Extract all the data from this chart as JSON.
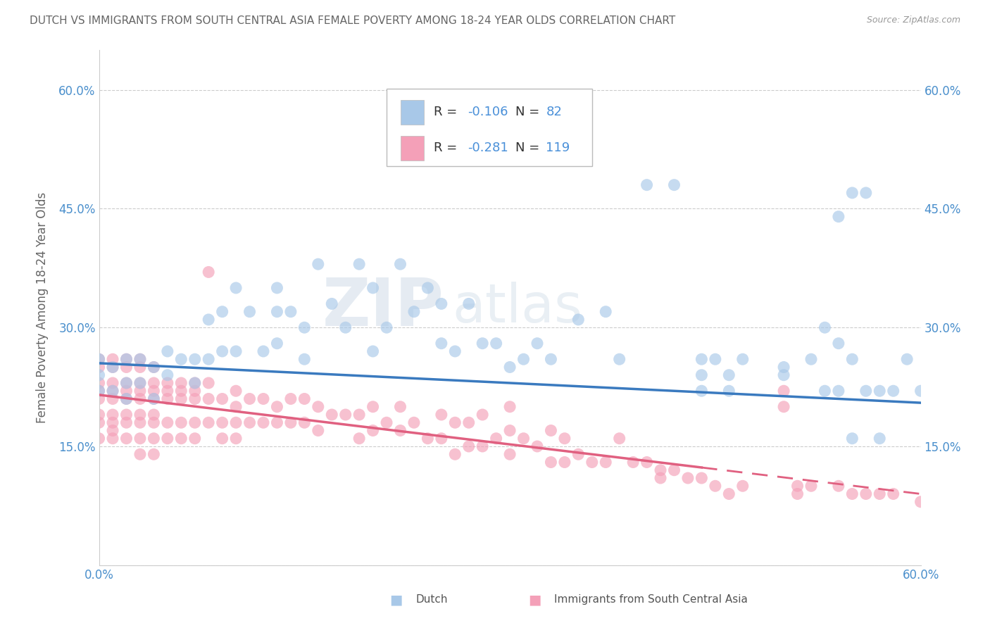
{
  "title": "DUTCH VS IMMIGRANTS FROM SOUTH CENTRAL ASIA FEMALE POVERTY AMONG 18-24 YEAR OLDS CORRELATION CHART",
  "source": "Source: ZipAtlas.com",
  "ylabel": "Female Poverty Among 18-24 Year Olds",
  "xlim": [
    0.0,
    0.6
  ],
  "ylim": [
    0.0,
    0.65
  ],
  "yticks": [
    0.0,
    0.15,
    0.3,
    0.45,
    0.6
  ],
  "ytick_labels": [
    "",
    "15.0%",
    "30.0%",
    "45.0%",
    "60.0%"
  ],
  "xticks": [
    0.0,
    0.6
  ],
  "xtick_labels": [
    "0.0%",
    "60.0%"
  ],
  "dutch_color": "#a8c8e8",
  "immigrant_color": "#f4a0b8",
  "dutch_line_color": "#3a7abf",
  "immigrant_line_color": "#e06080",
  "legend_text_color": "#4a90d9",
  "legend_labels": [
    "Dutch",
    "Immigrants from South Central Asia"
  ],
  "watermark_zip": "ZIP",
  "watermark_atlas": "atlas",
  "background_color": "#ffffff",
  "grid_color": "#cccccc",
  "title_color": "#666666",
  "axis_label_color": "#666666",
  "tick_label_color": "#4a8fcc",
  "dutch_line_y0": 0.255,
  "dutch_line_y1": 0.205,
  "imm_line_y0": 0.215,
  "imm_line_y1": 0.09,
  "dutch_x": [
    0.0,
    0.0,
    0.0,
    0.01,
    0.01,
    0.02,
    0.02,
    0.02,
    0.03,
    0.03,
    0.04,
    0.04,
    0.05,
    0.05,
    0.06,
    0.07,
    0.07,
    0.08,
    0.08,
    0.09,
    0.09,
    0.1,
    0.1,
    0.11,
    0.12,
    0.13,
    0.13,
    0.14,
    0.15,
    0.16,
    0.17,
    0.18,
    0.19,
    0.2,
    0.2,
    0.21,
    0.22,
    0.23,
    0.24,
    0.25,
    0.25,
    0.26,
    0.27,
    0.28,
    0.29,
    0.3,
    0.3,
    0.31,
    0.32,
    0.33,
    0.35,
    0.37,
    0.38,
    0.4,
    0.42,
    0.44,
    0.44,
    0.45,
    0.46,
    0.47,
    0.5,
    0.5,
    0.52,
    0.54,
    0.54,
    0.55,
    0.56,
    0.56,
    0.57,
    0.58,
    0.59,
    0.6,
    0.53,
    0.54,
    0.55,
    0.44,
    0.46,
    0.53,
    0.55,
    0.57,
    0.13,
    0.15
  ],
  "dutch_y": [
    0.26,
    0.24,
    0.22,
    0.25,
    0.22,
    0.26,
    0.23,
    0.21,
    0.26,
    0.23,
    0.25,
    0.21,
    0.27,
    0.24,
    0.26,
    0.26,
    0.23,
    0.31,
    0.26,
    0.32,
    0.27,
    0.35,
    0.27,
    0.32,
    0.27,
    0.35,
    0.28,
    0.32,
    0.3,
    0.38,
    0.33,
    0.3,
    0.38,
    0.35,
    0.27,
    0.3,
    0.38,
    0.32,
    0.35,
    0.28,
    0.33,
    0.27,
    0.33,
    0.28,
    0.28,
    0.55,
    0.25,
    0.26,
    0.28,
    0.26,
    0.31,
    0.32,
    0.26,
    0.48,
    0.48,
    0.26,
    0.24,
    0.26,
    0.24,
    0.26,
    0.25,
    0.24,
    0.26,
    0.22,
    0.28,
    0.47,
    0.47,
    0.22,
    0.22,
    0.22,
    0.26,
    0.22,
    0.3,
    0.44,
    0.26,
    0.22,
    0.22,
    0.22,
    0.16,
    0.16,
    0.32,
    0.26
  ],
  "imm_x": [
    0.0,
    0.0,
    0.0,
    0.0,
    0.0,
    0.0,
    0.0,
    0.0,
    0.01,
    0.01,
    0.01,
    0.01,
    0.01,
    0.01,
    0.01,
    0.01,
    0.01,
    0.02,
    0.02,
    0.02,
    0.02,
    0.02,
    0.02,
    0.02,
    0.02,
    0.03,
    0.03,
    0.03,
    0.03,
    0.03,
    0.03,
    0.03,
    0.03,
    0.03,
    0.04,
    0.04,
    0.04,
    0.04,
    0.04,
    0.04,
    0.04,
    0.04,
    0.05,
    0.05,
    0.05,
    0.05,
    0.05,
    0.06,
    0.06,
    0.06,
    0.06,
    0.06,
    0.07,
    0.07,
    0.07,
    0.07,
    0.07,
    0.08,
    0.08,
    0.08,
    0.08,
    0.09,
    0.09,
    0.09,
    0.1,
    0.1,
    0.1,
    0.1,
    0.11,
    0.11,
    0.12,
    0.12,
    0.13,
    0.13,
    0.14,
    0.14,
    0.15,
    0.15,
    0.16,
    0.16,
    0.17,
    0.18,
    0.19,
    0.19,
    0.2,
    0.2,
    0.21,
    0.22,
    0.22,
    0.23,
    0.24,
    0.25,
    0.25,
    0.26,
    0.26,
    0.27,
    0.27,
    0.28,
    0.28,
    0.29,
    0.3,
    0.3,
    0.3,
    0.31,
    0.32,
    0.33,
    0.33,
    0.34,
    0.34,
    0.35,
    0.36,
    0.37,
    0.38,
    0.39,
    0.4,
    0.41,
    0.41,
    0.42,
    0.43,
    0.44,
    0.45,
    0.46,
    0.47,
    0.5,
    0.5,
    0.51,
    0.51,
    0.52,
    0.54,
    0.55,
    0.56,
    0.57,
    0.58,
    0.6
  ],
  "imm_y": [
    0.26,
    0.23,
    0.21,
    0.18,
    0.16,
    0.25,
    0.22,
    0.19,
    0.26,
    0.23,
    0.21,
    0.18,
    0.16,
    0.25,
    0.22,
    0.19,
    0.17,
    0.26,
    0.23,
    0.21,
    0.18,
    0.16,
    0.25,
    0.22,
    0.19,
    0.26,
    0.23,
    0.21,
    0.18,
    0.22,
    0.25,
    0.16,
    0.19,
    0.14,
    0.25,
    0.23,
    0.21,
    0.18,
    0.22,
    0.16,
    0.19,
    0.14,
    0.23,
    0.21,
    0.18,
    0.22,
    0.16,
    0.23,
    0.21,
    0.18,
    0.22,
    0.16,
    0.23,
    0.21,
    0.18,
    0.22,
    0.16,
    0.23,
    0.21,
    0.18,
    0.37,
    0.21,
    0.18,
    0.16,
    0.22,
    0.2,
    0.18,
    0.16,
    0.21,
    0.18,
    0.21,
    0.18,
    0.2,
    0.18,
    0.21,
    0.18,
    0.21,
    0.18,
    0.2,
    0.17,
    0.19,
    0.19,
    0.19,
    0.16,
    0.2,
    0.17,
    0.18,
    0.2,
    0.17,
    0.18,
    0.16,
    0.19,
    0.16,
    0.18,
    0.14,
    0.18,
    0.15,
    0.19,
    0.15,
    0.16,
    0.2,
    0.17,
    0.14,
    0.16,
    0.15,
    0.17,
    0.13,
    0.16,
    0.13,
    0.14,
    0.13,
    0.13,
    0.16,
    0.13,
    0.13,
    0.12,
    0.11,
    0.12,
    0.11,
    0.11,
    0.1,
    0.09,
    0.1,
    0.22,
    0.2,
    0.1,
    0.09,
    0.1,
    0.1,
    0.09,
    0.09,
    0.09,
    0.09,
    0.08
  ]
}
